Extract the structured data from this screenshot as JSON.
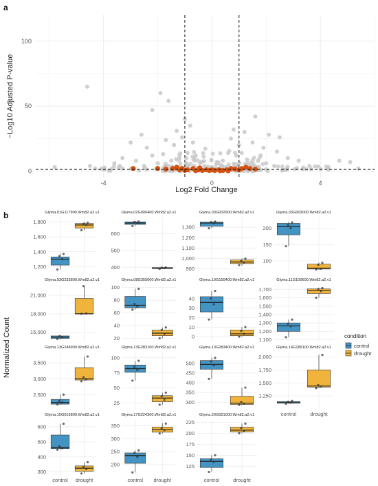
{
  "panel_labels": [
    "a",
    "b"
  ],
  "colors": {
    "control": "#4393c3",
    "drought": "#f0b43c",
    "volcano_grey": "#c8c8c8",
    "volcano_highlight": "#d4520e",
    "grid": "#ebebeb"
  },
  "chart_data": [
    {
      "type": "scatter",
      "panel": "a",
      "xlabel": "Log2 Fold Change",
      "ylabel": "−Log10 Adjusted P-value",
      "xlim": [
        -6.5,
        6
      ],
      "ylim": [
        -5,
        120
      ],
      "xticks": [
        -4,
        0,
        4
      ],
      "yticks": [
        0,
        50,
        100
      ],
      "vlines": [
        -1,
        1
      ],
      "hline": 1.3,
      "grid": true,
      "highlight_points": [
        {
          "x": -2.9,
          "y": 2
        },
        {
          "x": -2.0,
          "y": 2
        },
        {
          "x": -1.7,
          "y": 1.5
        },
        {
          "x": -1.45,
          "y": 2
        },
        {
          "x": -1.3,
          "y": 3
        },
        {
          "x": -1.2,
          "y": 1
        },
        {
          "x": -1.1,
          "y": 2
        },
        {
          "x": -1.0,
          "y": 0.5
        },
        {
          "x": -0.9,
          "y": 1
        },
        {
          "x": -0.7,
          "y": 2
        },
        {
          "x": -0.5,
          "y": 1
        },
        {
          "x": -0.35,
          "y": 0.5
        },
        {
          "x": -0.2,
          "y": 1
        },
        {
          "x": -0.1,
          "y": 0.5
        },
        {
          "x": 0.0,
          "y": 1
        },
        {
          "x": 0.1,
          "y": 0.5
        },
        {
          "x": 0.25,
          "y": 1
        },
        {
          "x": 0.4,
          "y": 0.5
        },
        {
          "x": 0.55,
          "y": 1
        },
        {
          "x": 0.7,
          "y": 2
        },
        {
          "x": 0.85,
          "y": 1.5
        },
        {
          "x": 1.0,
          "y": 1
        },
        {
          "x": 1.1,
          "y": 2
        },
        {
          "x": 1.25,
          "y": 3
        },
        {
          "x": 1.4,
          "y": 2
        },
        {
          "x": 1.6,
          "y": 1.5
        },
        {
          "x": -0.6,
          "y": 0.3
        },
        {
          "x": 0.3,
          "y": 0.3
        },
        {
          "x": -0.45,
          "y": 2.5
        },
        {
          "x": 0.6,
          "y": 0.2
        }
      ],
      "grey_points": [
        {
          "x": -4.6,
          "y": 65
        },
        {
          "x": -1.9,
          "y": 60
        },
        {
          "x": -1.6,
          "y": 54
        },
        {
          "x": -2.2,
          "y": 47
        },
        {
          "x": -1.0,
          "y": 40
        },
        {
          "x": 1.6,
          "y": 42
        },
        {
          "x": 2.1,
          "y": 28
        },
        {
          "x": 2.5,
          "y": 26
        },
        {
          "x": -2.6,
          "y": 28
        },
        {
          "x": -1.3,
          "y": 31
        },
        {
          "x": -0.8,
          "y": 35
        },
        {
          "x": 0.8,
          "y": 32
        },
        {
          "x": 1.2,
          "y": 30
        },
        {
          "x": -3.0,
          "y": 22
        },
        {
          "x": -1.7,
          "y": 24
        },
        {
          "x": -1.4,
          "y": 20
        },
        {
          "x": 1.5,
          "y": 22
        },
        {
          "x": 1.9,
          "y": 18
        },
        {
          "x": 0.7,
          "y": 25
        },
        {
          "x": 1.0,
          "y": 20
        },
        {
          "x": -1.1,
          "y": 26
        },
        {
          "x": -0.7,
          "y": 22
        },
        {
          "x": 2.4,
          "y": 15
        },
        {
          "x": -2.2,
          "y": 12
        },
        {
          "x": -3.3,
          "y": 10
        },
        {
          "x": -3.6,
          "y": 6
        },
        {
          "x": -2.8,
          "y": 8
        },
        {
          "x": 2.8,
          "y": 10
        },
        {
          "x": 3.2,
          "y": 8
        },
        {
          "x": 4.7,
          "y": 8
        },
        {
          "x": 5.1,
          "y": 7
        },
        {
          "x": -5.8,
          "y": 3
        },
        {
          "x": -4.5,
          "y": 4
        },
        {
          "x": -4.0,
          "y": 2
        },
        {
          "x": -3.4,
          "y": 4
        },
        {
          "x": 3.6,
          "y": 4
        },
        {
          "x": 4.3,
          "y": 3
        },
        {
          "x": 5.4,
          "y": 2
        },
        {
          "x": -2.4,
          "y": 18
        },
        {
          "x": 1.1,
          "y": 14
        },
        {
          "x": 0.9,
          "y": 12
        },
        {
          "x": -0.9,
          "y": 14
        },
        {
          "x": -1.2,
          "y": 10
        },
        {
          "x": 1.3,
          "y": 9
        },
        {
          "x": -0.6,
          "y": 12
        },
        {
          "x": 0.6,
          "y": 14
        },
        {
          "x": -1.5,
          "y": 8
        },
        {
          "x": 1.7,
          "y": 8
        },
        {
          "x": -2.0,
          "y": 6
        },
        {
          "x": 2.0,
          "y": 6
        },
        {
          "x": -0.4,
          "y": 7
        },
        {
          "x": 0.4,
          "y": 8
        },
        {
          "x": 2.3,
          "y": 4
        },
        {
          "x": -2.5,
          "y": 4
        },
        {
          "x": -1.8,
          "y": 13
        },
        {
          "x": 1.8,
          "y": 12
        }
      ]
    },
    {
      "type": "box",
      "panel": "b",
      "ylabel": "Normalized Count",
      "categories": [
        "control",
        "drought"
      ],
      "legend": {
        "title": "condition",
        "entries": [
          "control",
          "drought"
        ],
        "placement": "right"
      },
      "facets": [
        {
          "title": "Glyma.01G117900.Wm82.a2.v1",
          "ylim": [
            1100,
            1870
          ],
          "yticks": [
            1200,
            1400,
            1600,
            1800
          ],
          "control": {
            "q1": 1220,
            "med": 1300,
            "q3": 1330,
            "lo": 1160,
            "hi": 1375,
            "points": [
              1160,
              1300,
              1340,
              1370
            ]
          },
          "drought": {
            "q1": 1720,
            "med": 1760,
            "q3": 1780,
            "lo": 1690,
            "hi": 1800,
            "points": [
              1690,
              1760,
              1775,
              1790
            ]
          }
        },
        {
          "title": "Glyma.02G000400.Wm82.a2.v1",
          "ylim": [
            360,
            700
          ],
          "yticks": [
            400,
            500,
            600
          ],
          "control": {
            "q1": 655,
            "med": 663,
            "q3": 670,
            "lo": 645,
            "hi": 675,
            "points": [
              645,
              663,
              670,
              672
            ]
          },
          "drought": {
            "q1": 392,
            "med": 395,
            "q3": 398,
            "lo": 389,
            "hi": 400,
            "points": [
              390,
              395,
              398,
              399
            ]
          }
        },
        {
          "title": "Glyma.03G002900.Wm82.a2.v1",
          "ylim": [
            850,
            1400
          ],
          "yticks": [
            900,
            1000,
            1100,
            1200,
            1300
          ],
          "control": {
            "q1": 1310,
            "med": 1340,
            "q3": 1350,
            "lo": 1290,
            "hi": 1360,
            "points": [
              1290,
              1340,
              1348,
              1355
            ]
          },
          "drought": {
            "q1": 950,
            "med": 965,
            "q3": 985,
            "lo": 930,
            "hi": 1000,
            "points": [
              935,
              960,
              975,
              998
            ]
          }
        },
        {
          "title": "Glyma.03G003000.Wm82.a2.v1",
          "ylim": [
            60,
            235
          ],
          "yticks": [
            100,
            150,
            200
          ],
          "control": {
            "q1": 180,
            "med": 205,
            "q3": 215,
            "lo": 145,
            "hi": 220,
            "points": [
              145,
              200,
              210,
              218
            ]
          },
          "drought": {
            "q1": 75,
            "med": 78,
            "q3": 90,
            "lo": 73,
            "hi": 95,
            "points": [
              74,
              76,
              88,
              94
            ]
          }
        },
        {
          "title": "Glyma.03G233800.Wm82.a2.v1",
          "ylim": [
            13500,
            22800
          ],
          "yticks": [
            15000,
            18000,
            21000
          ],
          "control": {
            "q1": 14000,
            "med": 14200,
            "q3": 14400,
            "lo": 13800,
            "hi": 14600,
            "points": [
              13900,
              14200,
              14350
            ]
          },
          "drought": {
            "q1": 18000,
            "med": 18000,
            "q3": 20500,
            "lo": 18000,
            "hi": 22500,
            "points": [
              18000,
              18050,
              22500
            ]
          }
        },
        {
          "title": "Glyma.08G355000.Wm82.a2.v1",
          "ylim": [
            15,
            105
          ],
          "yticks": [
            20,
            40,
            60,
            80,
            100
          ],
          "control": {
            "q1": 68,
            "med": 72,
            "q3": 86,
            "lo": 65,
            "hi": 98,
            "points": [
              65,
              70,
              74,
              98
            ]
          },
          "drought": {
            "q1": 24,
            "med": 28,
            "q3": 33,
            "lo": 20,
            "hi": 37,
            "points": [
              20,
              27,
              33,
              37
            ]
          }
        },
        {
          "title": "Glyma.10G150400.Wm82.a2.v1",
          "ylim": [
            -5,
            55
          ],
          "yticks": [
            0,
            10,
            20,
            30,
            40
          ],
          "control": {
            "q1": 26,
            "med": 36,
            "q3": 42,
            "lo": 18,
            "hi": 48,
            "points": [
              18,
              34,
              40,
              48
            ]
          },
          "drought": {
            "q1": 1,
            "med": 3,
            "q3": 7,
            "lo": 0,
            "hi": 10,
            "points": [
              0,
              3,
              6,
              10
            ]
          }
        },
        {
          "title": "Glyma.11G100600.Wm82.a2.v1",
          "ylim": [
            1080,
            1760
          ],
          "yticks": [
            1100,
            1200,
            1300,
            1400,
            1500,
            1600,
            1700
          ],
          "control": {
            "q1": 1200,
            "med": 1265,
            "q3": 1300,
            "lo": 1130,
            "hi": 1340,
            "points": [
              1130,
              1260,
              1290,
              1340
            ]
          },
          "drought": {
            "q1": 1650,
            "med": 1690,
            "q3": 1705,
            "lo": 1600,
            "hi": 1720,
            "points": [
              1600,
              1680,
              1700,
              1715
            ]
          }
        },
        {
          "title": "Glyma.13G248900.Wm82.a2.v1",
          "ylim": [
            2050,
            3850
          ],
          "yticks": [
            2500,
            3000,
            3500
          ],
          "control": {
            "q1": 2200,
            "med": 2250,
            "q3": 2350,
            "lo": 2180,
            "hi": 2500,
            "points": [
              2190,
              2250,
              2300,
              2500
            ]
          },
          "drought": {
            "q1": 2960,
            "med": 3000,
            "q3": 3350,
            "lo": 2920,
            "hi": 3700,
            "points": [
              2920,
              2980,
              3050,
              3700
            ]
          }
        },
        {
          "title": "Glyma.13G283100.Wm82.a2.v1",
          "ylim": [
            15,
            110
          ],
          "yticks": [
            25,
            50,
            75,
            100
          ],
          "control": {
            "q1": 76,
            "med": 82,
            "q3": 88,
            "lo": 62,
            "hi": 95,
            "points": [
              62,
              80,
              85,
              95
            ]
          },
          "drought": {
            "q1": 27,
            "med": 33,
            "q3": 37,
            "lo": 22,
            "hi": 42,
            "points": [
              22,
              30,
              36,
              42
            ]
          }
        },
        {
          "title": "Glyma.13G283400.Wm82.a2.v1",
          "ylim": [
            265,
            560
          ],
          "yticks": [
            300,
            350,
            400,
            450,
            500
          ],
          "control": {
            "q1": 470,
            "med": 495,
            "q3": 515,
            "lo": 420,
            "hi": 530,
            "points": [
              420,
              490,
              510,
              528
            ]
          },
          "drought": {
            "q1": 288,
            "med": 295,
            "q3": 330,
            "lo": 285,
            "hi": 375,
            "points": [
              286,
              292,
              300,
              375
            ]
          }
        },
        {
          "title": "Glyma.14G189100.Wm82.a2.v1",
          "ylim": [
            1000,
            2100
          ],
          "yticks": [
            1250,
            1500,
            1750,
            2000
          ],
          "control": {
            "q1": 1110,
            "med": 1120,
            "q3": 1140,
            "lo": 1100,
            "hi": 1160,
            "points": [
              1100,
              1120,
              1135,
              1155
            ]
          },
          "drought": {
            "q1": 1420,
            "med": 1440,
            "q3": 1750,
            "lo": 1400,
            "hi": 2040,
            "points": [
              1400,
              1430,
              1460,
              2040
            ]
          }
        },
        {
          "title": "Glyma.15G019800.Wm82.a2.v1",
          "ylim": [
            280,
            650
          ],
          "yticks": [
            300,
            400,
            500,
            600
          ],
          "control": {
            "q1": 455,
            "med": 462,
            "q3": 545,
            "lo": 448,
            "hi": 620,
            "points": [
              448,
              458,
              470,
              620
            ]
          },
          "drought": {
            "q1": 305,
            "med": 325,
            "q3": 340,
            "lo": 290,
            "hi": 365,
            "points": [
              290,
              320,
              335,
              365
            ]
          }
        },
        {
          "title": "Glyma.17G224300.Wm82.a2.v1",
          "ylim": [
            160,
            375
          ],
          "yticks": [
            200,
            250,
            300,
            350
          ],
          "control": {
            "q1": 205,
            "med": 235,
            "q3": 245,
            "lo": 170,
            "hi": 255,
            "points": [
              170,
              230,
              245,
              255
            ]
          },
          "drought": {
            "q1": 325,
            "med": 335,
            "q3": 345,
            "lo": 320,
            "hi": 360,
            "points": [
              320,
              333,
              340,
              358
            ]
          }
        },
        {
          "title": "Glyma.20G021000.Wm82.a2.v1",
          "ylim": [
            105,
            232
          ],
          "yticks": [
            125,
            150,
            175,
            200,
            225
          ],
          "control": {
            "q1": 122,
            "med": 136,
            "q3": 142,
            "lo": 112,
            "hi": 150,
            "points": [
              112,
              135,
              140,
              150
            ]
          },
          "drought": {
            "q1": 203,
            "med": 207,
            "q3": 214,
            "lo": 200,
            "hi": 222,
            "points": [
              200,
              205,
              212,
              222
            ]
          }
        }
      ]
    }
  ]
}
